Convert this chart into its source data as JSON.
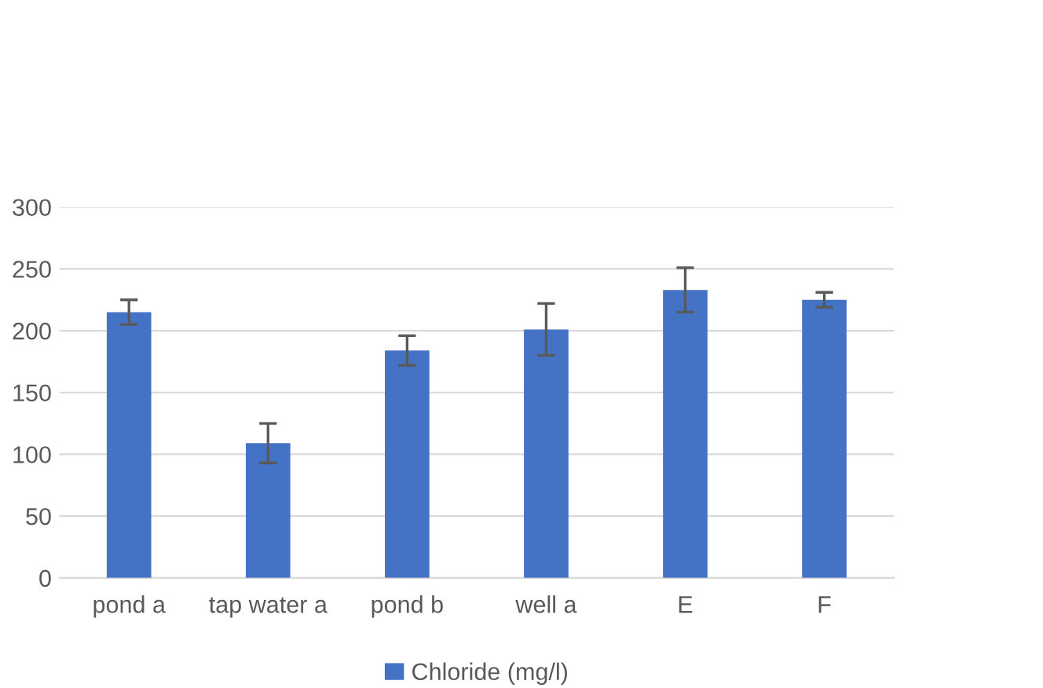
{
  "chart_data": {
    "type": "bar",
    "categories": [
      "pond a",
      "tap water a",
      "pond b",
      "well a",
      "E",
      "F"
    ],
    "series": [
      {
        "name": "Chloride (mg/l)",
        "color": "#4472c4",
        "values": [
          215,
          109,
          184,
          201,
          233,
          225
        ],
        "errors": [
          10,
          16,
          12,
          21,
          18,
          6
        ]
      }
    ],
    "ylim": [
      0,
      300
    ],
    "yticks": [
      0,
      50,
      100,
      150,
      200,
      250,
      300
    ],
    "grid": "y",
    "legend": "bottom"
  }
}
